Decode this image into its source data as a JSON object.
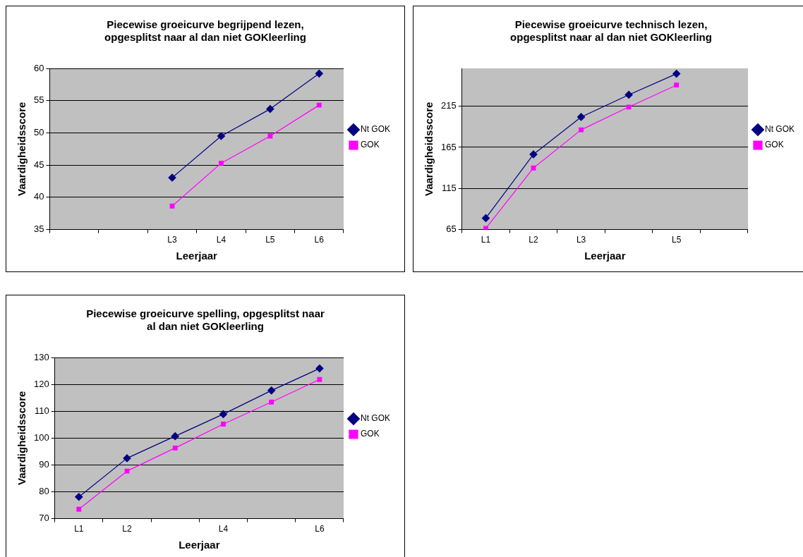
{
  "chart_data": [
    {
      "type": "line",
      "title": "Piecewise groeicurve begrijpend lezen,\nopgesplitst naar al dan niet GOKleerling",
      "xlabel": "Leerjaar",
      "ylabel": "Vaardigheidsscore",
      "categories": [
        null,
        null,
        "L3",
        "L4",
        "L5",
        "L6"
      ],
      "ylim": [
        35,
        60
      ],
      "yticks": [
        35,
        40,
        45,
        50,
        55,
        60
      ],
      "grid": "y",
      "legend": "right",
      "series": [
        {
          "name": "Nt GOK",
          "color": "#000080",
          "marker": "diamond",
          "values": [
            null,
            null,
            43.05,
            49.5,
            53.7,
            59.2
          ]
        },
        {
          "name": "GOK",
          "color": "#ff00ff",
          "marker": "square",
          "values": [
            null,
            null,
            38.65,
            45.3,
            49.5,
            54.3
          ]
        }
      ]
    },
    {
      "type": "line",
      "title": "Piecewise groeicurve technisch lezen,\nopgesplitst naar al dan niet GOKleerling",
      "xlabel": "Leerjaar",
      "ylabel": "Vaardigheidsscore",
      "categories": [
        "L1",
        "L2",
        "L3",
        null,
        "L5",
        null
      ],
      "ylim": [
        65,
        261
      ],
      "yticks": [
        65,
        115,
        165,
        215
      ],
      "grid": "y",
      "legend": "right",
      "series": [
        {
          "name": "Nt GOK",
          "color": "#000080",
          "marker": "diamond",
          "values": [
            78.9,
            156.5,
            201.9,
            228.9,
            254.5,
            null
          ]
        },
        {
          "name": "GOK",
          "color": "#ff00ff",
          "marker": "square",
          "values": [
            66.4,
            139.9,
            186.3,
            214,
            240.7,
            null
          ]
        }
      ]
    },
    {
      "type": "line",
      "title": "Piecewise groeicurve spelling, opgesplitst naar\nal dan niet GOKleerling",
      "xlabel": "Leerjaar",
      "ylabel": "Vaardigheidsscore",
      "categories": [
        "L1",
        "L2",
        null,
        "L4",
        null,
        "L6"
      ],
      "ylim": [
        70,
        130
      ],
      "yticks": [
        70,
        80,
        90,
        100,
        110,
        120,
        130
      ],
      "grid": "y",
      "legend": "right",
      "series": [
        {
          "name": "Nt GOK",
          "color": "#000080",
          "marker": "diamond",
          "values": [
            78.1,
            92.5,
            100.7,
            108.9,
            117.7,
            125.9
          ]
        },
        {
          "name": "GOK",
          "color": "#ff00ff",
          "marker": "square",
          "values": [
            73.5,
            87.7,
            96.3,
            105.2,
            113.4,
            121.8
          ]
        }
      ]
    }
  ]
}
